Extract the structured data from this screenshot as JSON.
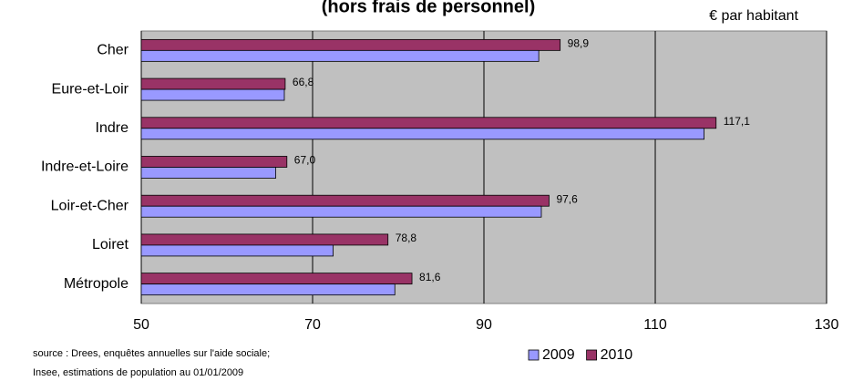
{
  "chart_data": {
    "type": "hbar",
    "title": "(hors frais de personnel)",
    "unit_label": "€ par habitant",
    "source": [
      "source : Drees, enquêtes annuelles sur l'aide sociale;",
      "Insee, estimations de population au 01/01/2009"
    ],
    "categories": [
      "Cher",
      "Eure-et-Loir",
      "Indre",
      "Indre-et-Loire",
      "Loir-et-Cher",
      "Loiret",
      "Métropole"
    ],
    "series": [
      {
        "name": "2009",
        "color": "#9999ff",
        "values": [
          96.4,
          66.7,
          115.7,
          65.7,
          96.7,
          72.4,
          79.6
        ]
      },
      {
        "name": "2010",
        "color": "#993366",
        "values": [
          98.9,
          66.8,
          117.1,
          67.0,
          97.6,
          78.8,
          81.6
        ],
        "value_labels": [
          "98,9",
          "66,8",
          "117,1",
          "67,0",
          "97,6",
          "78,8",
          "81,6"
        ]
      }
    ],
    "xlim": [
      50,
      130
    ],
    "xticks": [
      50,
      70,
      90,
      110,
      130
    ],
    "grid": true,
    "legend": "bottom"
  }
}
